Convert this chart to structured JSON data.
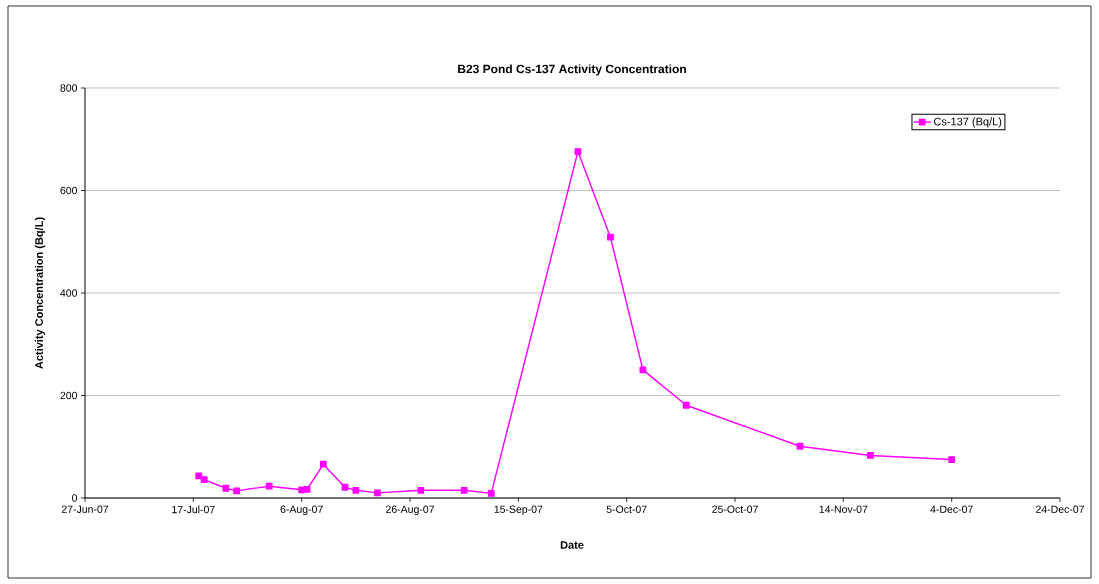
{
  "chart_data": {
    "type": "line",
    "title": "B23 Pond Cs-137 Activity Concentration",
    "xlabel": "Date",
    "ylabel": "Activity Concentration (Bq/L)",
    "x": [
      "2007-07-18",
      "2007-07-19",
      "2007-07-23",
      "2007-07-25",
      "2007-07-31",
      "2007-08-06",
      "2007-08-07",
      "2007-08-10",
      "2007-08-14",
      "2007-08-16",
      "2007-08-20",
      "2007-08-28",
      "2007-09-05",
      "2007-09-10",
      "2007-09-26",
      "2007-10-02",
      "2007-10-08",
      "2007-10-16",
      "2007-11-06",
      "2007-11-19",
      "2007-12-04"
    ],
    "series": [
      {
        "name": "Cs-137 (Bq/L)",
        "color": "#ff00ff",
        "values": [
          43,
          36,
          19,
          14,
          23,
          16,
          17,
          66,
          21,
          15,
          10,
          15,
          15,
          9,
          676,
          509,
          250,
          181,
          101,
          83,
          75
        ]
      }
    ],
    "xlim": [
      "2007-06-27",
      "2007-12-24"
    ],
    "xticks": [
      {
        "value": "2007-06-27",
        "label": "27-Jun-07"
      },
      {
        "value": "2007-07-17",
        "label": "17-Jul-07"
      },
      {
        "value": "2007-08-06",
        "label": "6-Aug-07"
      },
      {
        "value": "2007-08-26",
        "label": "26-Aug-07"
      },
      {
        "value": "2007-09-15",
        "label": "15-Sep-07"
      },
      {
        "value": "2007-10-05",
        "label": "5-Oct-07"
      },
      {
        "value": "2007-10-25",
        "label": "25-Oct-07"
      },
      {
        "value": "2007-11-14",
        "label": "14-Nov-07"
      },
      {
        "value": "2007-12-04",
        "label": "4-Dec-07"
      },
      {
        "value": "2007-12-24",
        "label": "24-Dec-07"
      }
    ],
    "ylim": [
      0,
      800
    ],
    "yticks": [
      0,
      200,
      400,
      600,
      800
    ],
    "grid": "y",
    "legend": "top right",
    "marker": "square",
    "line_style": "solid"
  }
}
